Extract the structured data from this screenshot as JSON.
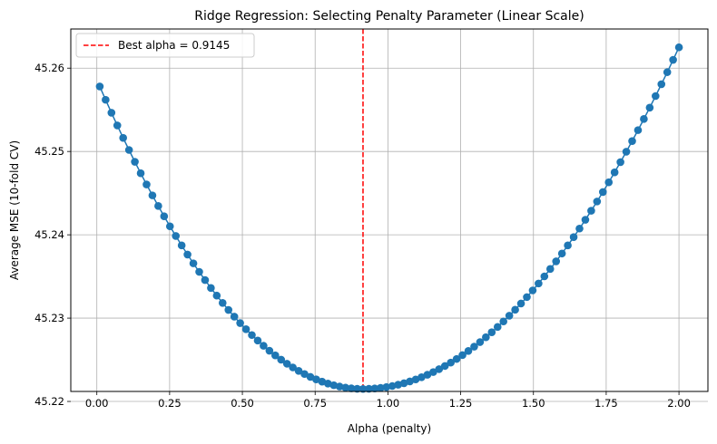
{
  "chart_data": {
    "type": "line",
    "title": "Ridge Regression: Selecting Penalty Parameter (Linear Scale)",
    "xlabel": "Alpha (penalty)",
    "ylabel": "Average MSE (10-fold CV)",
    "xlim": [
      -0.0895,
      2.0995
    ],
    "ylim": [
      45.2212,
      45.2647
    ],
    "xticks": [
      0.0,
      0.25,
      0.5,
      0.75,
      1.0,
      1.25,
      1.5,
      1.75,
      2.0
    ],
    "xtick_labels": [
      "0.00",
      "0.25",
      "0.50",
      "0.75",
      "1.00",
      "1.25",
      "1.50",
      "1.75",
      "2.00"
    ],
    "yticks": [
      45.22,
      45.23,
      45.24,
      45.25,
      45.26
    ],
    "ytick_labels": [
      "45.22",
      "45.23",
      "45.24",
      "45.25",
      "45.26"
    ],
    "grid": true,
    "legend_position": "upper-left",
    "series": [
      {
        "type": "line-with-markers",
        "color": "#1f77b4",
        "x_start": 0.01,
        "x_end": 2.0,
        "n_points": 100,
        "approx_curve": "quadratic, minimum near alpha 0.9145",
        "y_at_min": 45.2215,
        "y_at_x_start": 45.2578,
        "y_at_x_end": 45.2625
      }
    ],
    "reference_line": {
      "orientation": "vertical",
      "x": 0.9145,
      "color": "#ff0000",
      "style": "dashed",
      "label": "Best alpha = 0.9145"
    }
  }
}
